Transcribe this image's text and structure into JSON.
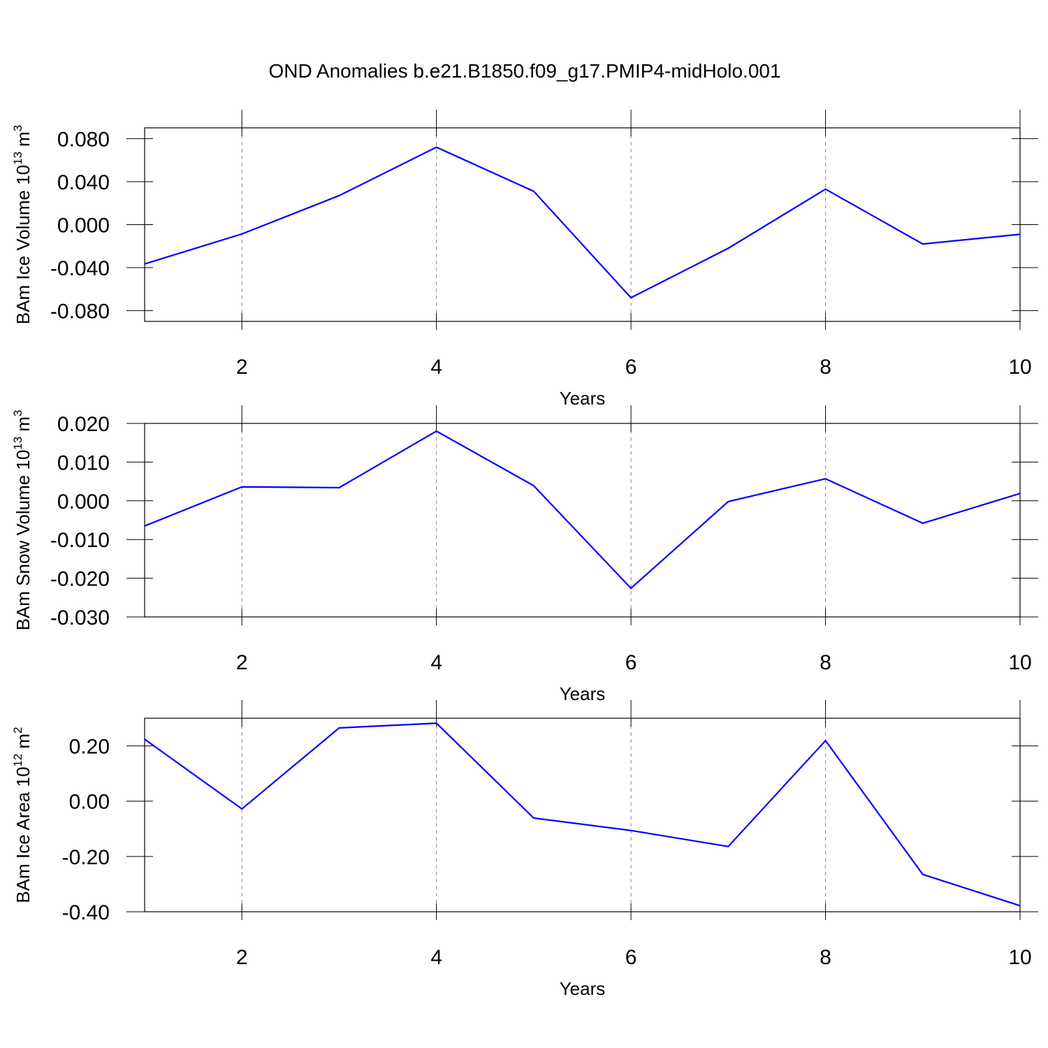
{
  "title": "OND Anomalies b.e21.B1850.f09_g17.PMIP4-midHolo.001",
  "chart_data": [
    {
      "type": "line",
      "xlabel": "Years",
      "ylabel": [
        "BAm Ice Volume 10",
        "13",
        "m",
        "3"
      ],
      "x": [
        1,
        2,
        3,
        4,
        5,
        6,
        7,
        8,
        9,
        10
      ],
      "series": [
        {
          "color": "#0000ff",
          "values": [
            -0.0366,
            -0.0087,
            0.027,
            0.072,
            0.031,
            -0.068,
            -0.022,
            0.033,
            -0.018,
            -0.009
          ]
        }
      ],
      "xlim": [
        1,
        10
      ],
      "xticks": [
        2,
        4,
        6,
        8,
        10
      ],
      "ylim": [
        -0.09,
        0.09
      ],
      "yticks": [
        {
          "value": -0.08,
          "label": "-0.080"
        },
        {
          "value": -0.04,
          "label": "-0.040"
        },
        {
          "value": 0,
          "label": "0.000"
        },
        {
          "value": 0.04,
          "label": "0.040"
        },
        {
          "value": 0.08,
          "label": "0.080"
        }
      ],
      "grid": "x-dashed"
    },
    {
      "type": "line",
      "xlabel": "Years",
      "ylabel": [
        "BAm Snow Volume 10",
        "13",
        "m",
        "3"
      ],
      "x": [
        1,
        2,
        3,
        4,
        5,
        6,
        7,
        8,
        9,
        10
      ],
      "series": [
        {
          "color": "#0000ff",
          "values": [
            -0.0065,
            0.0036,
            0.0034,
            0.018,
            0.0039,
            -0.0226,
            -0.0002,
            0.0057,
            -0.0058,
            0.0019
          ]
        }
      ],
      "xlim": [
        1,
        10
      ],
      "xticks": [
        2,
        4,
        6,
        8,
        10
      ],
      "ylim": [
        -0.03,
        0.02
      ],
      "yticks": [
        {
          "value": -0.03,
          "label": "-0.030"
        },
        {
          "value": -0.02,
          "label": "-0.020"
        },
        {
          "value": -0.01,
          "label": "-0.010"
        },
        {
          "value": 0,
          "label": "0.000"
        },
        {
          "value": 0.01,
          "label": "0.010"
        },
        {
          "value": 0.02,
          "label": "0.020"
        }
      ],
      "grid": "x-dashed"
    },
    {
      "type": "line",
      "xlabel": "Years",
      "ylabel": [
        "BAm Ice Area 10",
        "12",
        "m",
        "2"
      ],
      "x": [
        1,
        2,
        3,
        4,
        5,
        6,
        7,
        8,
        9,
        10
      ],
      "series": [
        {
          "color": "#0000ff",
          "values": [
            0.224,
            -0.028,
            0.265,
            0.282,
            -0.061,
            -0.106,
            -0.164,
            0.219,
            -0.265,
            -0.378
          ]
        }
      ],
      "xlim": [
        1,
        10
      ],
      "xticks": [
        2,
        4,
        6,
        8,
        10
      ],
      "ylim": [
        -0.4,
        0.3
      ],
      "yticks": [
        {
          "value": -0.4,
          "label": "-0.40"
        },
        {
          "value": -0.2,
          "label": "-0.20"
        },
        {
          "value": 0,
          "label": "0.00"
        },
        {
          "value": 0.2,
          "label": "0.20"
        }
      ],
      "grid": "x-dashed"
    }
  ]
}
